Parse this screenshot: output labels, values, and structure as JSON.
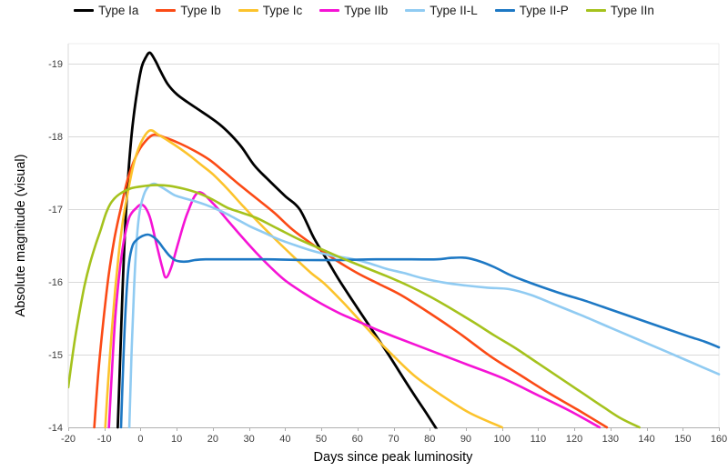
{
  "page": {
    "background": "#ffffff"
  },
  "chart_data": {
    "type": "line",
    "title": "",
    "xlabel": "Days since peak luminosity",
    "ylabel": "Absolute magnitude (visual)",
    "xlim": [
      -20,
      160
    ],
    "ylim": [
      -19,
      -14
    ],
    "x_ticks": [
      -20,
      -10,
      0,
      10,
      20,
      30,
      40,
      50,
      60,
      70,
      80,
      90,
      100,
      110,
      120,
      130,
      140,
      150,
      160
    ],
    "y_ticks": [
      -19,
      -18,
      -17,
      -16,
      -15,
      -14
    ],
    "grid": "horizontal-only",
    "legend_position": "top-center",
    "grid_color": "#d9d9d9",
    "axis_line_color": "#b0b0b0",
    "tick_label_color": "#3d3d3d",
    "series": [
      {
        "name": "Type Ia",
        "color": "#000000",
        "points": [
          [
            -6.3,
            -14.0
          ],
          [
            -5.6,
            -15.0
          ],
          [
            -4.9,
            -16.0
          ],
          [
            -4.1,
            -16.9
          ],
          [
            -3.2,
            -17.6
          ],
          [
            -2.2,
            -18.15
          ],
          [
            -1,
            -18.6
          ],
          [
            0.3,
            -18.95
          ],
          [
            1.5,
            -19.09
          ],
          [
            2.6,
            -19.15
          ],
          [
            4,
            -19.05
          ],
          [
            5.5,
            -18.9
          ],
          [
            7.5,
            -18.72
          ],
          [
            10,
            -18.58
          ],
          [
            13,
            -18.47
          ],
          [
            16,
            -18.37
          ],
          [
            19,
            -18.27
          ],
          [
            22,
            -18.16
          ],
          [
            25,
            -18.02
          ],
          [
            28,
            -17.85
          ],
          [
            31.5,
            -17.6
          ],
          [
            35,
            -17.42
          ],
          [
            40,
            -17.18
          ],
          [
            44,
            -17.0
          ],
          [
            48,
            -16.6
          ],
          [
            52,
            -16.27
          ],
          [
            55,
            -16.02
          ],
          [
            60,
            -15.64
          ],
          [
            65,
            -15.27
          ],
          [
            69,
            -14.97
          ],
          [
            75,
            -14.5
          ],
          [
            79,
            -14.2
          ],
          [
            82.5,
            -13.93
          ]
        ]
      },
      {
        "name": "Type Ib",
        "color": "#fb4a15",
        "points": [
          [
            -12.8,
            -14.0
          ],
          [
            -11.6,
            -14.8
          ],
          [
            -10.2,
            -15.5
          ],
          [
            -8.8,
            -16.1
          ],
          [
            -7.2,
            -16.6
          ],
          [
            -5.5,
            -17.0
          ],
          [
            -3.5,
            -17.42
          ],
          [
            -1.5,
            -17.7
          ],
          [
            0.5,
            -17.88
          ],
          [
            3.5,
            -18.02
          ],
          [
            7,
            -17.98
          ],
          [
            11,
            -17.9
          ],
          [
            15,
            -17.8
          ],
          [
            19,
            -17.68
          ],
          [
            23,
            -17.52
          ],
          [
            27,
            -17.35
          ],
          [
            32,
            -17.15
          ],
          [
            37,
            -16.95
          ],
          [
            42,
            -16.72
          ],
          [
            48,
            -16.5
          ],
          [
            54,
            -16.3
          ],
          [
            60,
            -16.12
          ],
          [
            66,
            -15.97
          ],
          [
            72,
            -15.82
          ],
          [
            80,
            -15.57
          ],
          [
            88,
            -15.3
          ],
          [
            97,
            -14.97
          ],
          [
            105,
            -14.72
          ],
          [
            113,
            -14.47
          ],
          [
            121,
            -14.24
          ],
          [
            129,
            -14.0
          ]
        ]
      },
      {
        "name": "Type Ic",
        "color": "#fcc32c",
        "points": [
          [
            -9.75,
            -14.0
          ],
          [
            -9,
            -14.6
          ],
          [
            -8,
            -15.3
          ],
          [
            -7,
            -15.9
          ],
          [
            -6,
            -16.4
          ],
          [
            -5,
            -16.8
          ],
          [
            -4,
            -17.1
          ],
          [
            -2,
            -17.6
          ],
          [
            0,
            -17.9
          ],
          [
            2.5,
            -18.08
          ],
          [
            5,
            -18.02
          ],
          [
            8,
            -17.93
          ],
          [
            11,
            -17.83
          ],
          [
            14,
            -17.72
          ],
          [
            17,
            -17.6
          ],
          [
            20,
            -17.48
          ],
          [
            24,
            -17.28
          ],
          [
            28,
            -17.06
          ],
          [
            32,
            -16.85
          ],
          [
            37,
            -16.6
          ],
          [
            42,
            -16.36
          ],
          [
            47,
            -16.13
          ],
          [
            51,
            -15.97
          ],
          [
            56,
            -15.72
          ],
          [
            61,
            -15.45
          ],
          [
            66,
            -15.18
          ],
          [
            70,
            -14.98
          ],
          [
            76,
            -14.7
          ],
          [
            83,
            -14.45
          ],
          [
            91,
            -14.2
          ],
          [
            100,
            -14.0
          ]
        ]
      },
      {
        "name": "Type IIb",
        "color": "#f513d5",
        "points": [
          [
            -8.75,
            -14.0
          ],
          [
            -8,
            -14.7
          ],
          [
            -7,
            -15.5
          ],
          [
            -6,
            -16.05
          ],
          [
            -5,
            -16.45
          ],
          [
            -4,
            -16.72
          ],
          [
            -3,
            -16.9
          ],
          [
            -1.5,
            -17.0
          ],
          [
            0.5,
            -17.06
          ],
          [
            2.5,
            -16.9
          ],
          [
            4.5,
            -16.5
          ],
          [
            6,
            -16.2
          ],
          [
            7,
            -16.06
          ],
          [
            8.5,
            -16.2
          ],
          [
            10.5,
            -16.55
          ],
          [
            13,
            -16.95
          ],
          [
            16,
            -17.23
          ],
          [
            20,
            -17.08
          ],
          [
            24,
            -16.85
          ],
          [
            28,
            -16.62
          ],
          [
            32,
            -16.4
          ],
          [
            36,
            -16.2
          ],
          [
            40,
            -16.02
          ],
          [
            45,
            -15.85
          ],
          [
            50,
            -15.7
          ],
          [
            55,
            -15.57
          ],
          [
            60,
            -15.46
          ],
          [
            65,
            -15.35
          ],
          [
            70,
            -15.25
          ],
          [
            80,
            -15.06
          ],
          [
            90,
            -14.87
          ],
          [
            100,
            -14.68
          ],
          [
            110,
            -14.44
          ],
          [
            119,
            -14.22
          ],
          [
            127,
            -14.0
          ]
        ]
      },
      {
        "name": "Type II-L",
        "color": "#90cbf2",
        "points": [
          [
            -3.1,
            -14.0
          ],
          [
            -2.5,
            -15.0
          ],
          [
            -1.8,
            -15.9
          ],
          [
            -1.1,
            -16.55
          ],
          [
            -0.3,
            -16.95
          ],
          [
            0.8,
            -17.18
          ],
          [
            2,
            -17.3
          ],
          [
            3.7,
            -17.35
          ],
          [
            5.5,
            -17.31
          ],
          [
            7.5,
            -17.25
          ],
          [
            9.5,
            -17.19
          ],
          [
            12,
            -17.15
          ],
          [
            15,
            -17.11
          ],
          [
            18,
            -17.06
          ],
          [
            21,
            -17.0
          ],
          [
            24,
            -16.93
          ],
          [
            27,
            -16.85
          ],
          [
            30,
            -16.77
          ],
          [
            34,
            -16.68
          ],
          [
            38,
            -16.59
          ],
          [
            43,
            -16.5
          ],
          [
            48,
            -16.42
          ],
          [
            53,
            -16.36
          ],
          [
            58,
            -16.32
          ],
          [
            63,
            -16.26
          ],
          [
            68,
            -16.18
          ],
          [
            73,
            -16.12
          ],
          [
            78,
            -16.05
          ],
          [
            84,
            -15.99
          ],
          [
            90,
            -15.95
          ],
          [
            96,
            -15.92
          ],
          [
            102,
            -15.9
          ],
          [
            108,
            -15.82
          ],
          [
            115,
            -15.68
          ],
          [
            122,
            -15.54
          ],
          [
            130,
            -15.37
          ],
          [
            138,
            -15.2
          ],
          [
            146,
            -15.03
          ],
          [
            153,
            -14.88
          ],
          [
            160,
            -14.73
          ]
        ]
      },
      {
        "name": "Type II-P",
        "color": "#1d78c4",
        "points": [
          [
            -5.4,
            -14.0
          ],
          [
            -4.7,
            -15.0
          ],
          [
            -4,
            -15.75
          ],
          [
            -3.2,
            -16.25
          ],
          [
            -2.2,
            -16.5
          ],
          [
            -1,
            -16.58
          ],
          [
            0.5,
            -16.63
          ],
          [
            2,
            -16.65
          ],
          [
            3.5,
            -16.62
          ],
          [
            5,
            -16.55
          ],
          [
            6.5,
            -16.45
          ],
          [
            8,
            -16.36
          ],
          [
            9.5,
            -16.3
          ],
          [
            11,
            -16.28
          ],
          [
            13,
            -16.28
          ],
          [
            15,
            -16.3
          ],
          [
            18,
            -16.31
          ],
          [
            25,
            -16.31
          ],
          [
            35,
            -16.31
          ],
          [
            45,
            -16.3
          ],
          [
            55,
            -16.3
          ],
          [
            65,
            -16.31
          ],
          [
            75,
            -16.31
          ],
          [
            82,
            -16.31
          ],
          [
            86,
            -16.33
          ],
          [
            90,
            -16.33
          ],
          [
            94,
            -16.28
          ],
          [
            98,
            -16.2
          ],
          [
            102,
            -16.1
          ],
          [
            106,
            -16.02
          ],
          [
            111,
            -15.93
          ],
          [
            117,
            -15.83
          ],
          [
            123,
            -15.74
          ],
          [
            130,
            -15.62
          ],
          [
            137,
            -15.5
          ],
          [
            144,
            -15.38
          ],
          [
            151,
            -15.26
          ],
          [
            156,
            -15.18
          ],
          [
            160,
            -15.1
          ]
        ]
      },
      {
        "name": "Type IIn",
        "color": "#a5c21d",
        "points": [
          [
            -20,
            -14.55
          ],
          [
            -18.5,
            -15.1
          ],
          [
            -17,
            -15.55
          ],
          [
            -15.5,
            -15.95
          ],
          [
            -14,
            -16.25
          ],
          [
            -12.5,
            -16.5
          ],
          [
            -11,
            -16.72
          ],
          [
            -9.5,
            -16.95
          ],
          [
            -8,
            -17.1
          ],
          [
            -6,
            -17.2
          ],
          [
            -3,
            -17.28
          ],
          [
            0,
            -17.31
          ],
          [
            4,
            -17.33
          ],
          [
            8,
            -17.32
          ],
          [
            12,
            -17.28
          ],
          [
            16,
            -17.22
          ],
          [
            20,
            -17.13
          ],
          [
            24,
            -17.02
          ],
          [
            28,
            -16.95
          ],
          [
            32,
            -16.88
          ],
          [
            38,
            -16.73
          ],
          [
            44,
            -16.58
          ],
          [
            50,
            -16.45
          ],
          [
            56,
            -16.32
          ],
          [
            62,
            -16.2
          ],
          [
            68,
            -16.08
          ],
          [
            74,
            -15.95
          ],
          [
            80,
            -15.8
          ],
          [
            86,
            -15.63
          ],
          [
            92,
            -15.45
          ],
          [
            98,
            -15.26
          ],
          [
            104,
            -15.08
          ],
          [
            110,
            -14.88
          ],
          [
            116,
            -14.68
          ],
          [
            122,
            -14.48
          ],
          [
            128,
            -14.28
          ],
          [
            133,
            -14.12
          ],
          [
            138,
            -14.0
          ]
        ]
      }
    ]
  }
}
